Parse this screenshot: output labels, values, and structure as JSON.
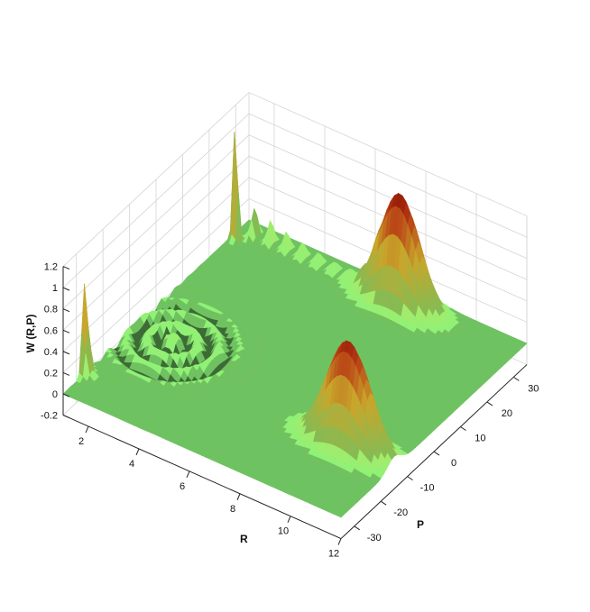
{
  "chart_data": {
    "type": "surface",
    "title": "",
    "xlabel": "R",
    "ylabel": "P",
    "zlabel": "W (R,P)",
    "xlim": [
      1,
      12
    ],
    "ylim": [
      -35,
      35
    ],
    "zlim": [
      -0.2,
      1.2
    ],
    "x_ticks": [
      "2",
      "4",
      "6",
      "8",
      "10",
      "12"
    ],
    "y_ticks": [
      "-30",
      "-20",
      "-10",
      "0",
      "10",
      "20",
      "30"
    ],
    "z_ticks": [
      "-0.2",
      "0",
      "0.2",
      "0.4",
      "0.6",
      "0.8",
      "1",
      "1.2"
    ],
    "grid": true,
    "colors": {
      "low": "#6fc261",
      "mid": "#c9a62b",
      "high": "#7a0000"
    },
    "peaks": [
      {
        "R": 1.2,
        "P": 28,
        "W": 1.15
      },
      {
        "R": 1.0,
        "P": -27,
        "W": 0.85
      },
      {
        "R": 7.5,
        "P": 30,
        "W": 1.05
      },
      {
        "R": 10.2,
        "P": -15,
        "W": 1.0
      }
    ]
  }
}
